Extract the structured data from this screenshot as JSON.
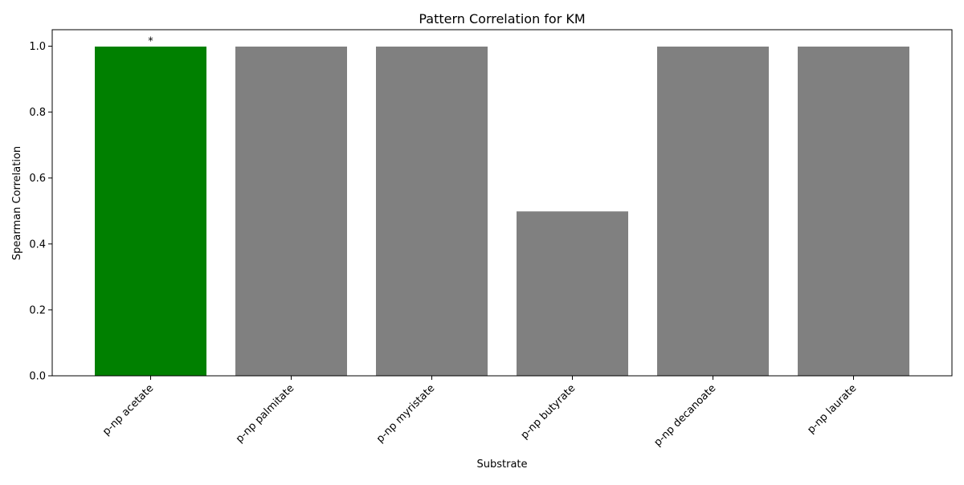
{
  "chart_data": {
    "type": "bar",
    "title": "Pattern Correlation for KM",
    "xlabel": "Substrate",
    "ylabel": "Spearman Correlation",
    "categories": [
      "p-np acetate",
      "p-np palmitate",
      "p-np myristate",
      "p-np butyrate",
      "p-np decanoate",
      "p-np laurate"
    ],
    "values": [
      1.0,
      1.0,
      1.0,
      0.5,
      1.0,
      1.0
    ],
    "bar_colors": [
      "#008000",
      "#808080",
      "#808080",
      "#808080",
      "#808080",
      "#808080"
    ],
    "significance_labels": [
      "*",
      "",
      "",
      "",
      "",
      ""
    ],
    "ylim": [
      0,
      1.05
    ],
    "yticks": [
      "0.0",
      "0.2",
      "0.4",
      "0.6",
      "0.8",
      "1.0"
    ],
    "grid": false,
    "legend": "none"
  }
}
